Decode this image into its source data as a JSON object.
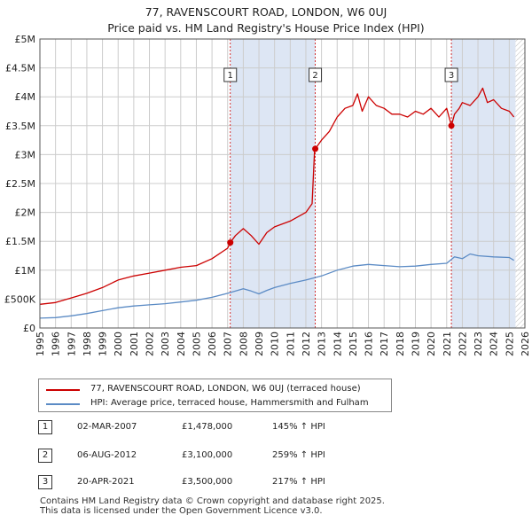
{
  "title_line1": "77, RAVENSCOURT ROAD, LONDON, W6 0UJ",
  "title_line2": "Price paid vs. HM Land Registry's House Price Index (HPI)",
  "colors": {
    "price": "#cc0000",
    "hpi": "#5b8bc5",
    "shade": "#dde6f4",
    "grid": "#cccccc"
  },
  "legend": {
    "price_label": "77, RAVENSCOURT ROAD, LONDON, W6 0UJ (terraced house)",
    "hpi_label": "HPI: Average price, terraced house, Hammersmith and Fulham"
  },
  "sales": [
    {
      "num": "1",
      "date": "02-MAR-2007",
      "price": "£1,478,000",
      "hpi": "145% ↑ HPI"
    },
    {
      "num": "2",
      "date": "06-AUG-2012",
      "price": "£3,100,000",
      "hpi": "259% ↑ HPI"
    },
    {
      "num": "3",
      "date": "20-APR-2021",
      "price": "£3,500,000",
      "hpi": "217% ↑ HPI"
    }
  ],
  "footer_line1": "Contains HM Land Registry data © Crown copyright and database right 2025.",
  "footer_line2": "This data is licensed under the Open Government Licence v3.0.",
  "chart_data": {
    "type": "line",
    "title": "Price paid vs. HM Land Registry's House Price Index (HPI)",
    "xlim": [
      1995,
      2026
    ],
    "ylim": [
      0,
      5000000
    ],
    "y_ticks": [
      0,
      500000,
      1000000,
      1500000,
      2000000,
      2500000,
      3000000,
      3500000,
      4000000,
      4500000,
      5000000
    ],
    "y_tick_labels": [
      "£0",
      "£500K",
      "£1M",
      "£1.5M",
      "£2M",
      "£2.5M",
      "£3M",
      "£3.5M",
      "£4M",
      "£4.5M",
      "£5M"
    ],
    "x_ticks": [
      1995,
      1996,
      1997,
      1998,
      1999,
      2000,
      2001,
      2002,
      2003,
      2004,
      2005,
      2006,
      2007,
      2008,
      2009,
      2010,
      2011,
      2012,
      2013,
      2014,
      2015,
      2016,
      2017,
      2018,
      2019,
      2020,
      2021,
      2022,
      2023,
      2024,
      2025,
      2026
    ],
    "x_tick_labels": [
      "1995",
      "1996",
      "1997",
      "1998",
      "1999",
      "2000",
      "2001",
      "2002",
      "2003",
      "2004",
      "2005",
      "2006",
      "2007",
      "2008",
      "2009",
      "2010",
      "2011",
      "2012",
      "2013",
      "2014",
      "2015",
      "2016",
      "2017",
      "2018",
      "2019",
      "2020",
      "2021",
      "2022",
      "2023",
      "2024",
      "2025",
      "2026"
    ],
    "shaded_regions": [
      [
        2007.17,
        2012.6
      ],
      [
        2021.3,
        2025.4
      ]
    ],
    "hatch_from": 2025.4,
    "sale_markers": [
      {
        "label": "1",
        "x": 2007.17,
        "y": 1478000
      },
      {
        "label": "2",
        "x": 2012.6,
        "y": 3100000
      },
      {
        "label": "3",
        "x": 2021.3,
        "y": 3500000
      }
    ],
    "series": [
      {
        "name": "77, RAVENSCOURT ROAD, LONDON, W6 0UJ (terraced house)",
        "color": "#cc0000",
        "x": [
          1995.0,
          1996.0,
          1997.0,
          1998.0,
          1999.0,
          2000.0,
          2001.0,
          2002.0,
          2003.0,
          2004.0,
          2005.0,
          2006.0,
          2007.0,
          2007.17,
          2007.5,
          2008.0,
          2008.5,
          2009.0,
          2009.5,
          2010.0,
          2011.0,
          2012.0,
          2012.4,
          2012.55,
          2012.6,
          2013.0,
          2013.5,
          2014.0,
          2014.5,
          2015.0,
          2015.3,
          2015.6,
          2016.0,
          2016.5,
          2017.0,
          2017.5,
          2018.0,
          2018.5,
          2019.0,
          2019.5,
          2020.0,
          2020.5,
          2021.0,
          2021.3,
          2021.5,
          2021.8,
          2022.0,
          2022.5,
          2023.0,
          2023.3,
          2023.6,
          2024.0,
          2024.5,
          2025.0,
          2025.3
        ],
        "values": [
          410000,
          440000,
          520000,
          600000,
          700000,
          830000,
          900000,
          950000,
          1000000,
          1050000,
          1080000,
          1200000,
          1380000,
          1478000,
          1600000,
          1720000,
          1600000,
          1450000,
          1650000,
          1750000,
          1850000,
          2000000,
          2150000,
          3050000,
          3100000,
          3250000,
          3400000,
          3650000,
          3800000,
          3850000,
          4050000,
          3750000,
          4000000,
          3850000,
          3800000,
          3700000,
          3700000,
          3650000,
          3750000,
          3700000,
          3800000,
          3650000,
          3800000,
          3500000,
          3700000,
          3800000,
          3900000,
          3850000,
          4000000,
          4150000,
          3900000,
          3950000,
          3800000,
          3750000,
          3650000
        ]
      },
      {
        "name": "HPI: Average price, terraced house, Hammersmith and Fulham",
        "color": "#5b8bc5",
        "x": [
          1995.0,
          1996.0,
          1997.0,
          1998.0,
          1999.0,
          2000.0,
          2001.0,
          2002.0,
          2003.0,
          2004.0,
          2005.0,
          2006.0,
          2007.0,
          2008.0,
          2008.5,
          2009.0,
          2009.5,
          2010.0,
          2011.0,
          2012.0,
          2013.0,
          2014.0,
          2015.0,
          2016.0,
          2017.0,
          2018.0,
          2019.0,
          2020.0,
          2021.0,
          2021.5,
          2022.0,
          2022.5,
          2023.0,
          2024.0,
          2025.0,
          2025.3
        ],
        "values": [
          170000,
          180000,
          210000,
          250000,
          300000,
          350000,
          380000,
          400000,
          420000,
          450000,
          480000,
          530000,
          600000,
          680000,
          640000,
          590000,
          650000,
          700000,
          770000,
          830000,
          900000,
          1000000,
          1070000,
          1100000,
          1080000,
          1060000,
          1070000,
          1100000,
          1120000,
          1230000,
          1200000,
          1280000,
          1250000,
          1230000,
          1220000,
          1170000
        ]
      }
    ]
  }
}
